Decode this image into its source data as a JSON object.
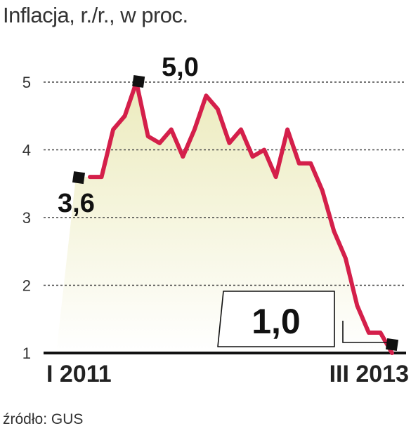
{
  "title": "Inflacja, r./r., w proc.",
  "source": "źródło: GUS",
  "chart_data": {
    "type": "area",
    "title": "Inflacja, r./r., w proc.",
    "xlabel": "",
    "ylabel": "",
    "x_tick_labels": [
      "I 2011",
      "III 2013"
    ],
    "y_ticks": [
      1,
      2,
      3,
      4,
      5
    ],
    "y_tick_labels": [
      "1",
      "2",
      "3",
      "4",
      "5"
    ],
    "ylim": [
      1,
      5.4
    ],
    "grid": true,
    "x": [
      "I 2011",
      "II 2011",
      "III 2011",
      "IV 2011",
      "V 2011",
      "VI 2011",
      "VII 2011",
      "VIII 2011",
      "IX 2011",
      "X 2011",
      "XI 2011",
      "XII 2011",
      "I 2012",
      "II 2012",
      "III 2012",
      "IV 2012",
      "V 2012",
      "VI 2012",
      "VII 2012",
      "VIII 2012",
      "IX 2012",
      "X 2012",
      "XI 2012",
      "XII 2012",
      "I 2013",
      "II 2013",
      "III 2013"
    ],
    "values": [
      3.6,
      3.6,
      4.3,
      4.5,
      5.0,
      4.2,
      4.1,
      4.3,
      3.9,
      4.3,
      4.8,
      4.6,
      4.1,
      4.3,
      3.9,
      4.0,
      3.6,
      4.3,
      3.8,
      3.8,
      3.4,
      2.8,
      2.4,
      1.7,
      1.3,
      1.3,
      1.0
    ],
    "annotations": [
      {
        "text": "3,6",
        "point_index": 0
      },
      {
        "text": "5,0",
        "point_index": 4
      },
      {
        "text": "1,0",
        "point_index": 26
      }
    ],
    "colors": {
      "line": "#d41f4a",
      "fill_top": "#ecebbd",
      "fill_bottom": "#ffffff",
      "grid": "#444444",
      "axis": "#111111",
      "marker": "#111111"
    }
  }
}
